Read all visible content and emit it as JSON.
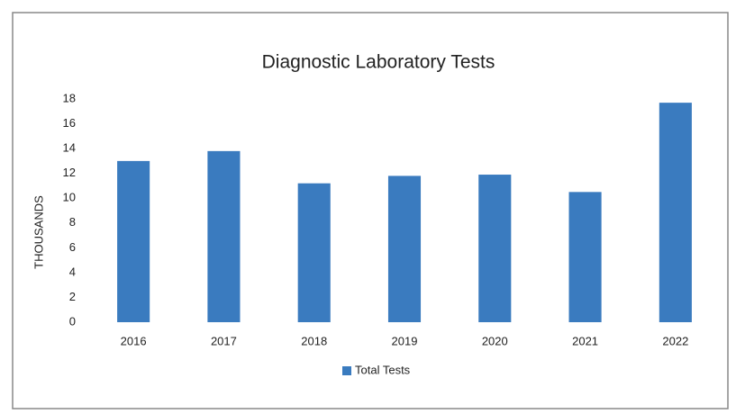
{
  "chart_data": {
    "type": "bar",
    "title": "Diagnostic Laboratory Tests",
    "y_label": "THOUSANDS",
    "categories": [
      "2016",
      "2017",
      "2018",
      "2019",
      "2020",
      "2021",
      "2022"
    ],
    "series": [
      {
        "name": "Total Tests",
        "color": "#3a7bbf",
        "values": [
          13,
          13.8,
          11.2,
          11.8,
          11.9,
          10.5,
          17.7
        ]
      }
    ],
    "ylim": [
      0,
      18
    ],
    "yticks": [
      0,
      2,
      4,
      6,
      8,
      10,
      12,
      14,
      16,
      18
    ],
    "grid": false,
    "legend": "bottom"
  }
}
